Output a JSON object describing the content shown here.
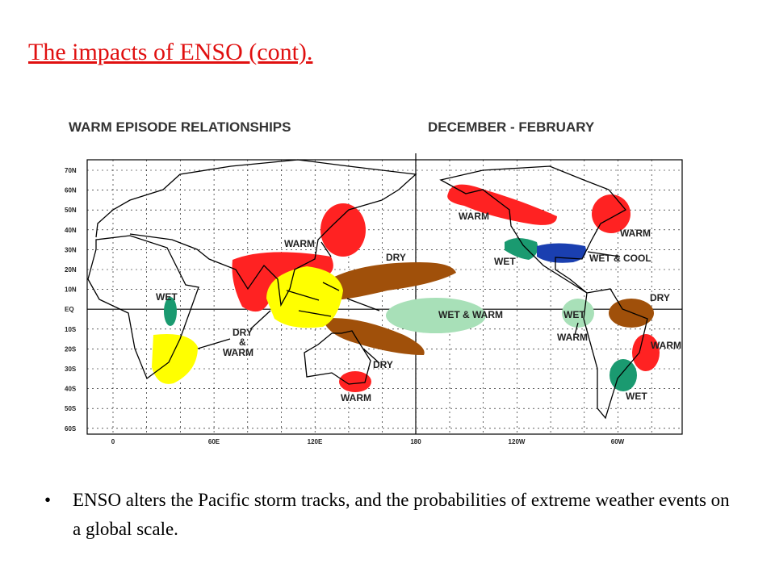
{
  "header": {
    "title": "The impacts of ENSO (cont)."
  },
  "map": {
    "title_left": "WARM EPISODE RELATIONSHIPS",
    "title_right": "DECEMBER - FEBRUARY",
    "lat_labels": [
      "70N",
      "60N",
      "50N",
      "40N",
      "30N",
      "20N",
      "10N",
      "EQ",
      "10S",
      "20S",
      "30S",
      "40S",
      "50S",
      "60S"
    ],
    "lon_labels": [
      "0",
      "60E",
      "120E",
      "180",
      "120W",
      "60W"
    ],
    "region_labels": [
      "WET",
      "WARM",
      "DRY",
      "WARM",
      "WARM",
      "WET",
      "WET & COOL",
      "DRY",
      "WET & WARM",
      "WET",
      "WARM",
      "DRY",
      "&",
      "WARM",
      "DRY",
      "WARM",
      "WARM",
      "WET"
    ]
  },
  "bullets": [
    "ENSO alters the Pacific storm tracks, and the probabilities of extreme weather events on a global scale."
  ]
}
